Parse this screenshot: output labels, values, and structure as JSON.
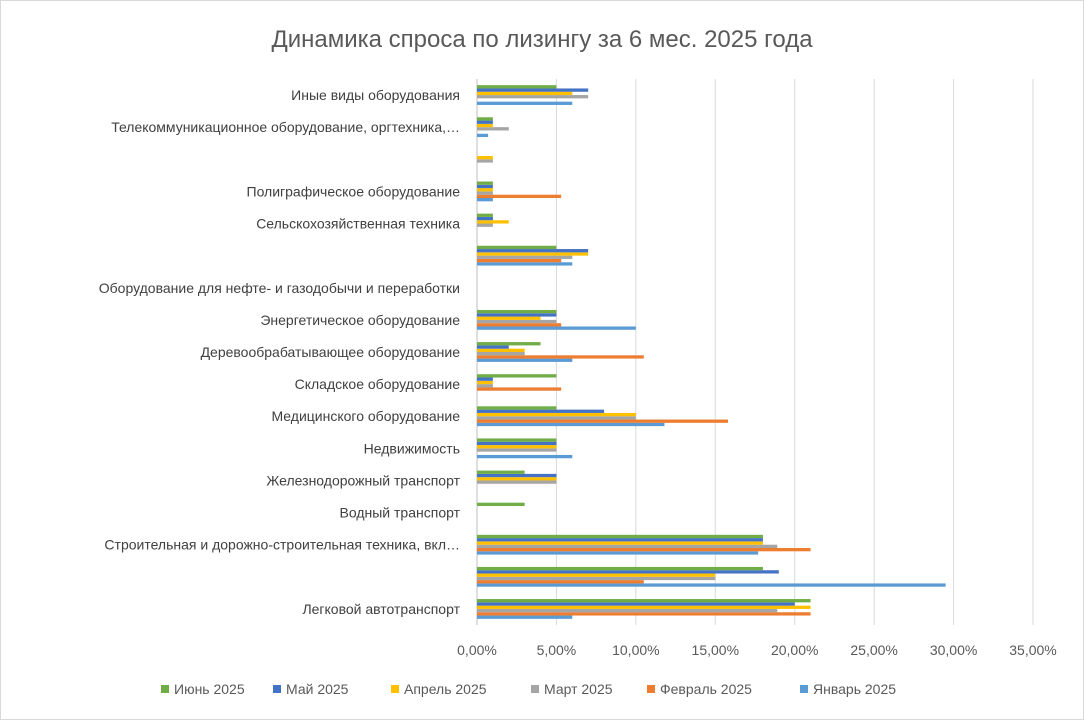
{
  "chart_data": {
    "type": "bar",
    "orientation": "horizontal",
    "title": "Динамика спроса по лизингу за 6 мес. 2025 года",
    "xlabel": "",
    "ylabel": "",
    "xlim": [
      0,
      35
    ],
    "x_ticks": [
      0,
      5,
      10,
      15,
      20,
      25,
      30,
      35
    ],
    "x_tick_labels": [
      "0,00%",
      "5,00%",
      "10,00%",
      "15,00%",
      "20,00%",
      "25,00%",
      "30,00%",
      "35,00%"
    ],
    "grid": true,
    "legend_position": "bottom",
    "categories": [
      "Легковой автотранспорт",
      "",
      "Строительная и дорожно-строительная техника, вкл…",
      "Водный транспорт",
      "Железнодорожный транспорт",
      "Недвижимость",
      "Медицинского оборудование",
      "Складское оборудование",
      "Деревообрабатывающее оборудование",
      "Энергетическое оборудование",
      "Оборудование для нефте- и газодобычи и переработки",
      "",
      "Сельскохозяйственная техника",
      "Полиграфическое оборудование",
      "",
      "Телекоммуникационное оборудование, оргтехника,…",
      "Иные виды оборудования"
    ],
    "series": [
      {
        "name": "Январь 2025",
        "color": "#5b9bd5",
        "values": [
          6,
          29.5,
          17.7,
          0,
          0,
          6,
          11.8,
          0,
          6,
          10,
          0,
          6,
          0,
          1,
          0,
          0.7,
          6
        ]
      },
      {
        "name": "Февраль 2025",
        "color": "#ed7d31",
        "values": [
          21,
          10.5,
          21,
          0,
          0,
          0,
          15.8,
          5.3,
          10.5,
          5.3,
          0,
          5.3,
          0,
          5.3,
          0,
          0,
          0
        ]
      },
      {
        "name": "Март 2025",
        "color": "#a5a5a5",
        "values": [
          18.9,
          15,
          18.9,
          0,
          5,
          5,
          10,
          1,
          3,
          5,
          0,
          6,
          1,
          1,
          1,
          2,
          7
        ]
      },
      {
        "name": "Апрель 2025",
        "color": "#ffc000",
        "values": [
          21,
          15,
          18,
          0,
          5,
          5,
          10,
          1,
          3,
          4,
          0,
          7,
          2,
          1,
          1,
          1,
          6
        ]
      },
      {
        "name": "Май 2025",
        "color": "#4472c4",
        "values": [
          20,
          19,
          18,
          0,
          5,
          5,
          8,
          1,
          2,
          5,
          0,
          7,
          1,
          1,
          0,
          1,
          7
        ]
      },
      {
        "name": "Июнь 2025",
        "color": "#70ad47",
        "values": [
          21,
          18,
          18,
          3,
          3,
          5,
          5,
          5,
          4,
          5,
          0,
          5,
          1,
          1,
          0,
          1,
          5
        ]
      }
    ],
    "legend_order": [
      "Июнь 2025",
      "Май 2025",
      "Апрель 2025",
      "Март 2025",
      "Февраль 2025",
      "Январь 2025"
    ],
    "grid_color": "#d9d9d9",
    "axis_color": "#bfbfbf"
  }
}
